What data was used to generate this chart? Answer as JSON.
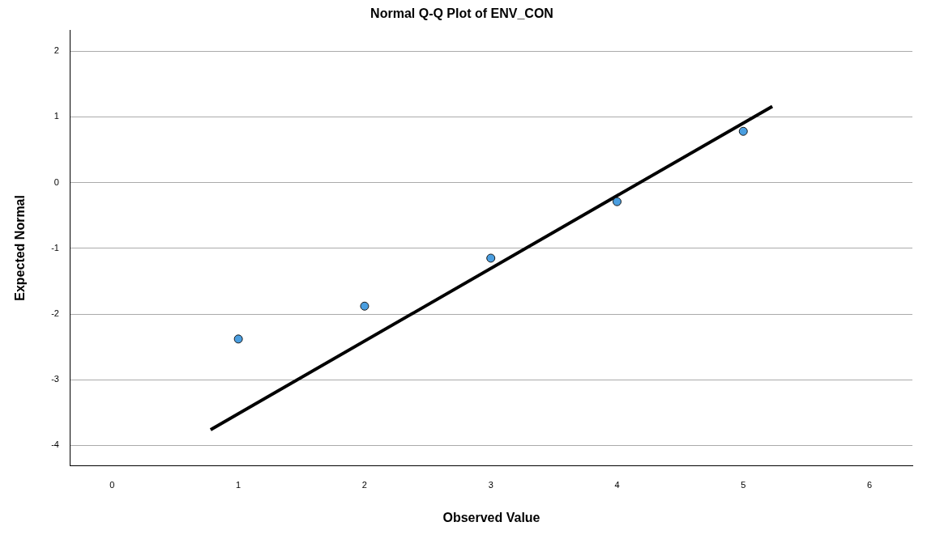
{
  "chart_data": {
    "type": "scatter",
    "title": "Normal Q-Q Plot of ENV_CON",
    "xlabel": "Observed Value",
    "ylabel": "Expected Normal",
    "series": [
      {
        "color": "#4a9ee0",
        "marker": "circle",
        "x": [
          1,
          2,
          3,
          4,
          5
        ],
        "values": [
          -2.38,
          -1.88,
          -1.15,
          -0.29,
          0.78
        ]
      },
      {
        "type": "line",
        "color": "#000000",
        "x": [
          0.78,
          5.23
        ],
        "values": [
          -3.76,
          1.16
        ]
      }
    ],
    "xlim": [
      -0.33,
      6.34
    ],
    "xticks": [
      0,
      1,
      2,
      3,
      4,
      5,
      6
    ],
    "ylim": [
      -4.31,
      2.32
    ],
    "yticks": [
      -4,
      -3,
      -2,
      -1,
      0,
      1,
      2
    ],
    "grid": "y",
    "legend": false
  }
}
